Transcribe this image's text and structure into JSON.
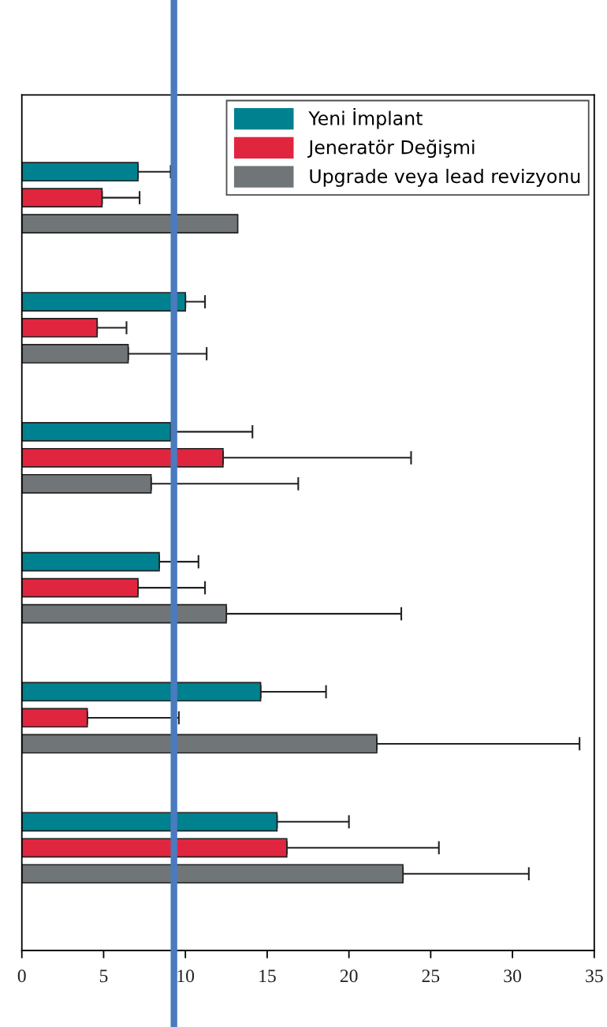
{
  "chart_data": {
    "type": "bar",
    "orientation": "horizontal",
    "categories": [
      null,
      null,
      null,
      null,
      null,
      null
    ],
    "series": [
      {
        "name": "Yeni İmplant",
        "color": "#00818f",
        "values": [
          7.1,
          10.0,
          9.1,
          8.4,
          14.6,
          15.6
        ],
        "errors": [
          [
            7.1,
            9.1
          ],
          [
            10.0,
            11.2
          ],
          [
            9.1,
            14.1
          ],
          [
            8.4,
            10.8
          ],
          [
            14.6,
            18.6
          ],
          [
            15.6,
            20.0
          ]
        ]
      },
      {
        "name": "Jeneratör Değişmi",
        "color": "#e0263f",
        "values": [
          4.9,
          4.6,
          12.3,
          7.1,
          4.0,
          16.2
        ],
        "errors": [
          [
            4.9,
            7.2
          ],
          [
            4.6,
            6.4
          ],
          [
            12.3,
            23.8
          ],
          [
            7.1,
            11.2
          ],
          [
            4.0,
            9.6
          ],
          [
            16.2,
            25.5
          ]
        ]
      },
      {
        "name": "Upgrade veya lead revizyonu",
        "color": "#707578",
        "values": [
          13.2,
          6.5,
          7.9,
          12.5,
          21.7,
          23.3
        ],
        "errors": [
          null,
          [
            6.5,
            11.3
          ],
          [
            7.9,
            16.9
          ],
          [
            12.5,
            23.2
          ],
          [
            21.7,
            34.1
          ],
          [
            23.3,
            31.0
          ]
        ]
      }
    ],
    "xlim": [
      0,
      35
    ],
    "xticks": [
      0,
      5,
      10,
      15,
      20,
      25,
      30,
      35
    ],
    "ref_lines": [
      {
        "axis": "x",
        "value": 9.3,
        "color": "#4a7bbf"
      }
    ],
    "legend": "top right",
    "grid": false
  }
}
